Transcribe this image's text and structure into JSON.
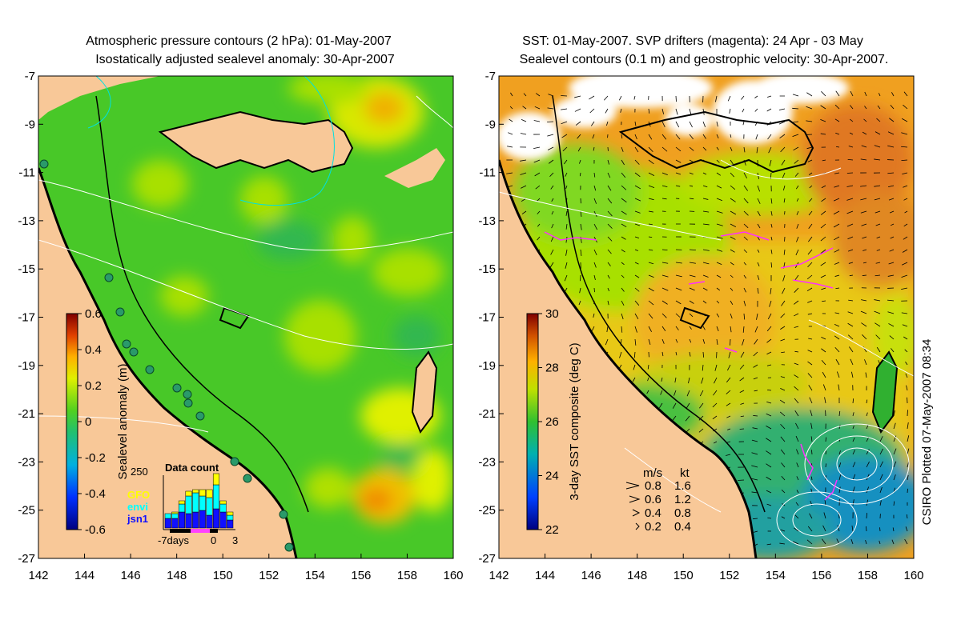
{
  "left_panel": {
    "title_line1": "Atmospheric pressure contours (2 hPa): 01-May-2007",
    "title_line2": "Isostatically adjusted sealevel anomaly: 30-Apr-2007",
    "colorbar": {
      "label": "Sealevel anomaly (m)",
      "ticks": [
        "0.6",
        "0.4",
        "0.2",
        "0",
        "-0.2",
        "-0.4",
        "-0.6"
      ]
    },
    "data_count": {
      "title": "Data count",
      "ymax_label": "250",
      "legend": [
        {
          "name": "GFO",
          "color": "#ffff00"
        },
        {
          "name": "envi",
          "color": "#00ffff"
        },
        {
          "name": "jsn1",
          "color": "#1010ff"
        }
      ],
      "xlabel_left": "-7days",
      "xlabel_mid": "0",
      "xlabel_right": "3"
    }
  },
  "right_panel": {
    "title_line1": "SST: 01-May-2007. SVP drifters (magenta): 24 Apr - 03 May",
    "title_line2": "Sealevel contours (0.1 m) and geostrophic velocity: 30-Apr-2007.",
    "colorbar": {
      "label": "3-day SST composite (deg C)",
      "ticks": [
        "30",
        "28",
        "26",
        "24",
        "22"
      ]
    },
    "velocity_legend": {
      "header_ms": "m/s",
      "header_kt": "kt",
      "rows": [
        {
          "ms": "0.8",
          "kt": "1.6"
        },
        {
          "ms": "0.6",
          "kt": "1.2"
        },
        {
          "ms": "0.4",
          "kt": "0.8"
        },
        {
          "ms": "0.2",
          "kt": "0.4"
        }
      ]
    },
    "credit": "CSIRO Plotted 07-May-2007 08:34"
  },
  "axes": {
    "lat_labels": [
      "-7",
      "-9",
      "-11",
      "-13",
      "-15",
      "-17",
      "-19",
      "-21",
      "-23",
      "-25",
      "-27"
    ],
    "lon_labels": [
      "142",
      "144",
      "146",
      "148",
      "150",
      "152",
      "154",
      "156",
      "158",
      "160"
    ]
  },
  "colors": {
    "land": "#f8c898",
    "sla_mean": "#44cc22",
    "sst_warm": "#e07020"
  }
}
